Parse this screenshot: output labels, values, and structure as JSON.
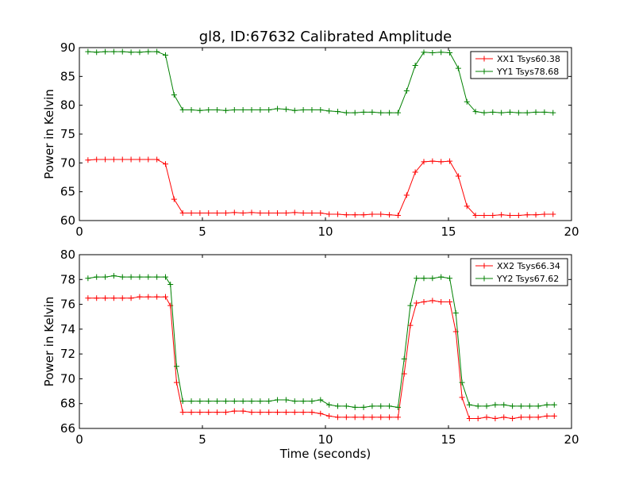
{
  "chart_data": [
    {
      "type": "line",
      "title": "gl8, ID:67632 Calibrated Amplitude",
      "xlabel": "",
      "ylabel": "Power in Kelvin",
      "xlim": [
        0,
        20
      ],
      "ylim": [
        60,
        90
      ],
      "xticks": [
        0,
        5,
        10,
        15,
        20
      ],
      "yticks": [
        60,
        65,
        70,
        75,
        80,
        85,
        90
      ],
      "grid": false,
      "legend_position": "top-right",
      "x": [
        0.35,
        0.7,
        1.05,
        1.4,
        1.75,
        2.1,
        2.45,
        2.8,
        3.15,
        3.5,
        3.85,
        4.2,
        4.55,
        4.9,
        5.25,
        5.6,
        5.95,
        6.3,
        6.65,
        7.0,
        7.35,
        7.7,
        8.05,
        8.4,
        8.75,
        9.1,
        9.45,
        9.8,
        10.15,
        10.5,
        10.85,
        11.2,
        11.55,
        11.9,
        12.25,
        12.6,
        12.95,
        13.3,
        13.65,
        14.0,
        14.35,
        14.7,
        15.05,
        15.4,
        15.75,
        16.1,
        16.45,
        16.8,
        17.15,
        17.5,
        17.85,
        18.2,
        18.55,
        18.9,
        19.25
      ],
      "series": [
        {
          "name": "XX1 Tsys60.38",
          "color": "#ff0000",
          "values": [
            70.5,
            70.6,
            70.6,
            70.6,
            70.6,
            70.6,
            70.6,
            70.6,
            70.6,
            69.8,
            63.7,
            61.3,
            61.3,
            61.3,
            61.3,
            61.3,
            61.3,
            61.4,
            61.3,
            61.4,
            61.3,
            61.3,
            61.3,
            61.3,
            61.4,
            61.3,
            61.3,
            61.3,
            61.1,
            61.1,
            61.0,
            61.0,
            61.0,
            61.1,
            61.1,
            61.0,
            60.9,
            64.4,
            68.4,
            70.2,
            70.3,
            70.2,
            70.3,
            67.7,
            62.5,
            60.9,
            60.9,
            60.9,
            61.0,
            60.9,
            60.9,
            61.0,
            61.0,
            61.1,
            61.1
          ]
        },
        {
          "name": "YY1 Tsys78.68",
          "color": "#008000",
          "values": [
            89.3,
            89.2,
            89.3,
            89.3,
            89.3,
            89.2,
            89.2,
            89.3,
            89.3,
            88.7,
            81.8,
            79.2,
            79.2,
            79.1,
            79.2,
            79.2,
            79.1,
            79.2,
            79.2,
            79.2,
            79.2,
            79.2,
            79.4,
            79.3,
            79.1,
            79.2,
            79.2,
            79.2,
            79.0,
            78.9,
            78.7,
            78.7,
            78.8,
            78.8,
            78.7,
            78.7,
            78.7,
            82.5,
            86.9,
            89.2,
            89.1,
            89.2,
            89.1,
            86.4,
            80.6,
            78.9,
            78.7,
            78.8,
            78.7,
            78.8,
            78.7,
            78.7,
            78.8,
            78.8,
            78.7
          ]
        }
      ]
    },
    {
      "type": "line",
      "title": "",
      "xlabel": "Time (seconds)",
      "ylabel": "Power in Kelvin",
      "xlim": [
        0,
        20
      ],
      "ylim": [
        66,
        80
      ],
      "xticks": [
        0,
        5,
        10,
        15,
        20
      ],
      "yticks": [
        66,
        68,
        70,
        72,
        74,
        76,
        78,
        80
      ],
      "grid": false,
      "legend_position": "top-right",
      "x": [
        0.35,
        0.7,
        1.05,
        1.4,
        1.75,
        2.1,
        2.45,
        2.8,
        3.15,
        3.5,
        3.7,
        3.95,
        4.2,
        4.55,
        4.9,
        5.25,
        5.6,
        5.95,
        6.3,
        6.65,
        7.0,
        7.35,
        7.7,
        8.05,
        8.4,
        8.75,
        9.1,
        9.45,
        9.8,
        10.15,
        10.5,
        10.85,
        11.2,
        11.55,
        11.9,
        12.25,
        12.6,
        12.95,
        13.2,
        13.45,
        13.7,
        14.0,
        14.35,
        14.7,
        15.05,
        15.3,
        15.55,
        15.85,
        16.2,
        16.55,
        16.9,
        17.25,
        17.6,
        17.95,
        18.3,
        18.65,
        19.0,
        19.3
      ],
      "series": [
        {
          "name": "XX2 Tsys66.34",
          "color": "#ff0000",
          "values": [
            76.5,
            76.5,
            76.5,
            76.5,
            76.5,
            76.5,
            76.6,
            76.6,
            76.6,
            76.6,
            75.9,
            69.7,
            67.3,
            67.3,
            67.3,
            67.3,
            67.3,
            67.3,
            67.4,
            67.4,
            67.3,
            67.3,
            67.3,
            67.3,
            67.3,
            67.3,
            67.3,
            67.3,
            67.2,
            67.0,
            66.9,
            66.9,
            66.9,
            66.9,
            66.9,
            66.9,
            66.9,
            66.9,
            70.4,
            74.3,
            76.1,
            76.2,
            76.3,
            76.2,
            76.2,
            73.8,
            68.5,
            66.8,
            66.8,
            66.9,
            66.8,
            66.9,
            66.8,
            66.9,
            66.9,
            66.9,
            67.0,
            67.0
          ]
        },
        {
          "name": "YY2 Tsys67.62",
          "color": "#008000",
          "values": [
            78.1,
            78.2,
            78.2,
            78.3,
            78.2,
            78.2,
            78.2,
            78.2,
            78.2,
            78.2,
            77.6,
            71.0,
            68.2,
            68.2,
            68.2,
            68.2,
            68.2,
            68.2,
            68.2,
            68.2,
            68.2,
            68.2,
            68.2,
            68.3,
            68.3,
            68.2,
            68.2,
            68.2,
            68.3,
            67.9,
            67.8,
            67.8,
            67.7,
            67.7,
            67.8,
            67.8,
            67.8,
            67.7,
            71.6,
            75.9,
            78.1,
            78.1,
            78.1,
            78.2,
            78.1,
            75.3,
            69.7,
            67.9,
            67.8,
            67.8,
            67.9,
            67.9,
            67.8,
            67.8,
            67.8,
            67.8,
            67.9,
            67.9
          ]
        }
      ]
    }
  ]
}
